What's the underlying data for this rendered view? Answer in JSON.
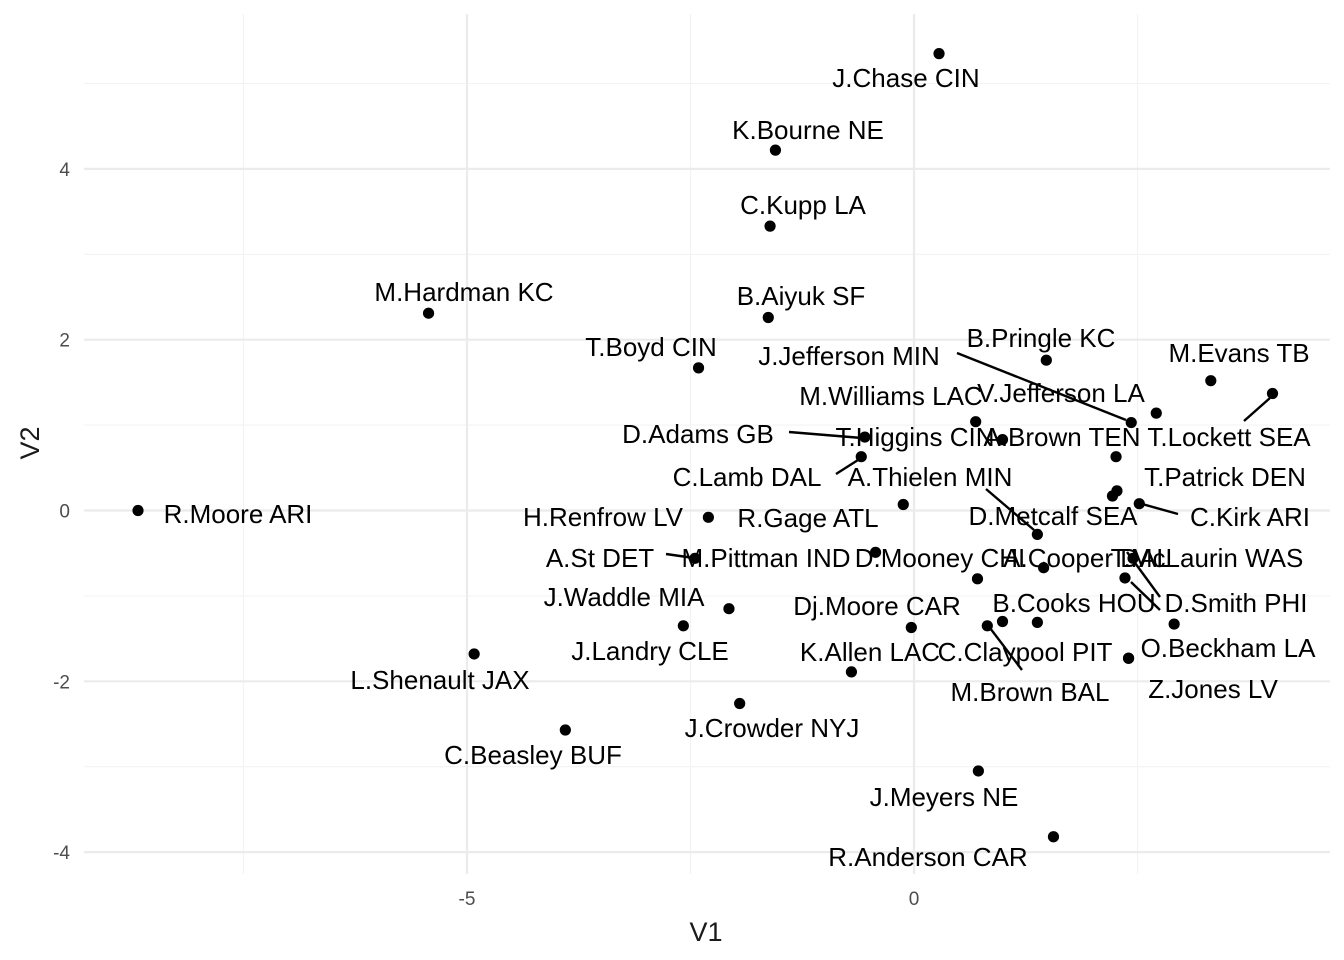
{
  "chart_data": {
    "type": "scatter",
    "title": "",
    "xlabel": "V1",
    "ylabel": "V2",
    "xlim": [
      -9.3,
      4.6
    ],
    "ylim": [
      -4.2,
      5.6
    ],
    "x_ticks": [
      -5,
      0
    ],
    "y_ticks": [
      -4,
      -2,
      0,
      2,
      4
    ],
    "grid": true,
    "legend": "none",
    "points": [
      {
        "label": "J.Chase CIN",
        "x": 0.28,
        "y": 5.35
      },
      {
        "label": "K.Bourne NE",
        "x": -1.55,
        "y": 4.22
      },
      {
        "label": "C.Kupp LA",
        "x": -1.61,
        "y": 3.33
      },
      {
        "label": "M.Hardman KC",
        "x": -5.43,
        "y": 2.31
      },
      {
        "label": "B.Aiyuk SF",
        "x": -1.63,
        "y": 2.26
      },
      {
        "label": "T.Boyd CIN",
        "x": -2.41,
        "y": 1.67
      },
      {
        "label": "B.Pringle KC",
        "x": 1.48,
        "y": 1.76
      },
      {
        "label": "M.Evans TB",
        "x": 3.32,
        "y": 1.52
      },
      {
        "label": "T.Lockett SEA",
        "x": 4.01,
        "y": 1.37
      },
      {
        "label": "J.Jefferson MIN",
        "x": 2.43,
        "y": 1.03
      },
      {
        "label": "V.Jefferson LA",
        "x": 2.71,
        "y": 1.14
      },
      {
        "label": "M.Williams LAC",
        "x": 0.69,
        "y": 1.04
      },
      {
        "label": "D.Adams GB",
        "x": -0.55,
        "y": 0.86
      },
      {
        "label": "T.Higgins CIN",
        "x": 0.99,
        "y": 0.83
      },
      {
        "label": "A.Brown TEN",
        "x": 2.26,
        "y": 0.63
      },
      {
        "label": "C.Lamb DAL",
        "x": -0.59,
        "y": 0.63
      },
      {
        "label": "T.Patrick DEN",
        "x": 2.27,
        "y": 0.23
      },
      {
        "label": "A.Thielen MIN",
        "x": 1.38,
        "y": -0.28
      },
      {
        "label": "R.Moore ARI",
        "x": -8.68,
        "y": 0.0
      },
      {
        "label": "H.Renfrow LV",
        "x": -2.3,
        "y": -0.08
      },
      {
        "label": "R.Gage ATL",
        "x": -0.12,
        "y": 0.07
      },
      {
        "label": "D.Metcalf SEA",
        "x": 2.22,
        "y": 0.17
      },
      {
        "label": "C.Kirk ARI",
        "x": 2.52,
        "y": 0.08
      },
      {
        "label": "A.St DET",
        "x": -2.45,
        "y": -0.56
      },
      {
        "label": "M.Pittman IND",
        "x": -0.43,
        "y": -0.49
      },
      {
        "label": "D.Mooney CHI",
        "x": 1.45,
        "y": -0.67
      },
      {
        "label": "A.Cooper DAL",
        "x": 2.45,
        "y": -0.56
      },
      {
        "label": "T.McLaurin WAS",
        "x": 2.36,
        "y": -0.79
      },
      {
        "label": "J.Waddle MIA",
        "x": -2.07,
        "y": -1.15
      },
      {
        "label": "Dj.Moore CAR",
        "x": 0.71,
        "y": -0.8
      },
      {
        "label": "B.Cooks HOU",
        "x": 1.38,
        "y": -1.31
      },
      {
        "label": "D.Smith PHI",
        "x": 2.91,
        "y": -1.33
      },
      {
        "label": "J.Landry CLE",
        "x": -2.58,
        "y": -1.35
      },
      {
        "label": "L.Shenault JAX",
        "x": -4.92,
        "y": -1.68
      },
      {
        "label": "C.Claypool PIT",
        "x": 0.99,
        "y": -1.3
      },
      {
        "label": "K.Allen LAC",
        "x": -0.03,
        "y": -1.37
      },
      {
        "label": "M.Brown BAL",
        "x": 0.82,
        "y": -1.35
      },
      {
        "label": "O.Beckham LA",
        "x": 2.4,
        "y": -1.73
      },
      {
        "label": "Z.Jones LV",
        "x": 2.4,
        "y": -1.73
      },
      {
        "label": "J.Crowder NYJ",
        "x": -1.95,
        "y": -2.26
      },
      {
        "label": "C.Beasley BUF",
        "x": -3.9,
        "y": -2.57
      },
      {
        "label": "J.Meyers NE",
        "x": 0.72,
        "y": -3.05
      },
      {
        "label": "R.Anderson CAR",
        "x": 1.56,
        "y": -3.82
      },
      {
        "label": "",
        "x": -0.7,
        "y": -1.89
      }
    ]
  }
}
